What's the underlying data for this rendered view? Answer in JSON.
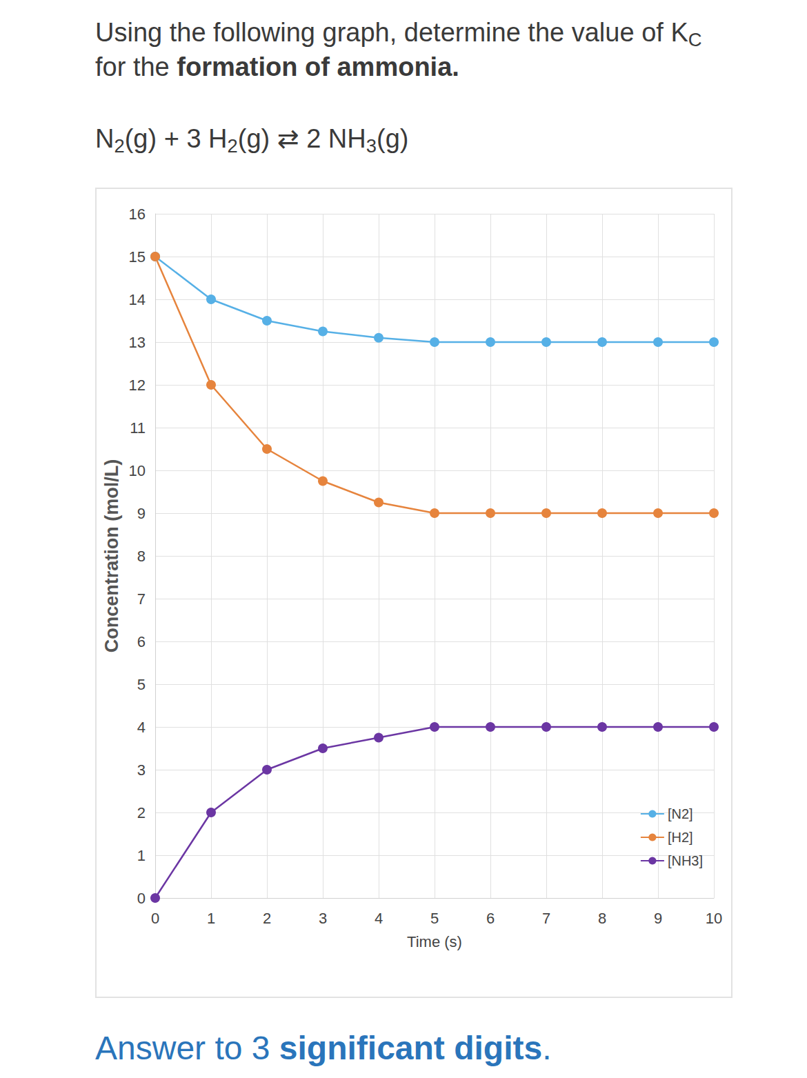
{
  "header": {
    "question": [
      {
        "text": "Using the following graph, determine the value of "
      },
      {
        "text": "K"
      },
      {
        "text": "C",
        "sub": true
      },
      {
        "text": " for the "
      },
      {
        "text": "formation of ammonia.",
        "bold": true
      }
    ],
    "equation": [
      {
        "text": "N"
      },
      {
        "text": "2",
        "sub": true
      },
      {
        "text": "(g) + 3 H"
      },
      {
        "text": "2",
        "sub": true
      },
      {
        "text": "(g) ⇄ 2 NH"
      },
      {
        "text": "3",
        "sub": true
      },
      {
        "text": "(g)"
      }
    ]
  },
  "chart_data": {
    "type": "line",
    "x_label": "Time (s)",
    "y_label": "Concentration (mol/L)",
    "x": [
      0,
      1,
      2,
      3,
      4,
      5,
      6,
      7,
      8,
      9,
      10
    ],
    "series": [
      {
        "name": "[N2]",
        "color": "#56b0e6",
        "marker": "circle",
        "values": [
          15,
          14,
          13.5,
          13.25,
          13.1,
          13,
          13,
          13,
          13,
          13,
          13
        ]
      },
      {
        "name": "[H2]",
        "color": "#e6843d",
        "marker": "circle",
        "values": [
          15,
          12,
          10.5,
          9.75,
          9.25,
          9,
          9,
          9,
          9,
          9,
          9
        ]
      },
      {
        "name": "[NH3]",
        "color": "#6b36a3",
        "marker": "circle",
        "values": [
          0,
          2,
          3,
          3.5,
          3.75,
          4,
          4,
          4,
          4,
          4,
          4
        ]
      }
    ],
    "xlim": [
      0,
      10
    ],
    "xticks": [
      0,
      1,
      2,
      3,
      4,
      5,
      6,
      7,
      8,
      9,
      10
    ],
    "ylim": [
      0,
      16
    ],
    "yticks": [
      0,
      1,
      2,
      3,
      4,
      5,
      6,
      7,
      8,
      9,
      10,
      11,
      12,
      13,
      14,
      15,
      16
    ],
    "grid": true,
    "legend": "lower right"
  },
  "footer": {
    "text": [
      {
        "text": "Answer to 3 "
      },
      {
        "text": "significant digits",
        "bold": true
      },
      {
        "text": "."
      }
    ]
  }
}
